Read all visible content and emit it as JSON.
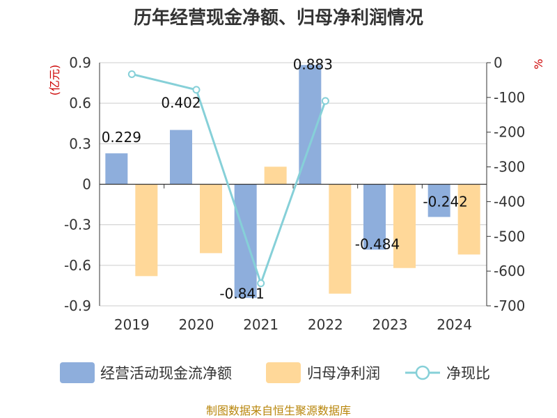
{
  "chart_data": {
    "type": "bar",
    "title": "历年经营现金净额、归母净利润情况",
    "categories": [
      "2019",
      "2020",
      "2021",
      "2022",
      "2023",
      "2024"
    ],
    "left_axis": {
      "unit": "(亿元)",
      "ylim": [
        -0.9,
        0.9
      ],
      "ticks": [
        "0.9",
        "0.6",
        "0.3",
        "0",
        "-0.3",
        "-0.6",
        "-0.9"
      ],
      "tick_values": [
        0.9,
        0.6,
        0.3,
        0,
        -0.3,
        -0.6,
        -0.9
      ]
    },
    "right_axis": {
      "unit": "%",
      "ylim": [
        -700,
        0
      ],
      "ticks": [
        "0",
        "-100",
        "-200",
        "-300",
        "-400",
        "-500",
        "-600",
        "-700"
      ],
      "tick_values": [
        0,
        -100,
        -200,
        -300,
        -400,
        -500,
        -600,
        -700
      ]
    },
    "series": [
      {
        "name": "经营活动现金流净额",
        "type": "bar",
        "axis": "left",
        "color": "#8eaedc",
        "values": [
          0.229,
          0.402,
          -0.841,
          0.883,
          -0.484,
          -0.242
        ],
        "labels": [
          "0.229",
          "0.402",
          "-0.841",
          "0.883",
          "-0.484",
          "-0.242"
        ]
      },
      {
        "name": "归母净利润",
        "type": "bar",
        "axis": "left",
        "color": "#ffd899",
        "values": [
          -0.68,
          -0.51,
          0.13,
          -0.81,
          -0.62,
          -0.52
        ]
      },
      {
        "name": "净现比",
        "type": "line",
        "axis": "right",
        "color": "#86d0d8",
        "values": [
          -33,
          -78,
          -635,
          -110,
          null,
          null
        ]
      }
    ],
    "grid": true,
    "legend": "bottom"
  },
  "source": "制图数据来自恒生聚源数据库"
}
